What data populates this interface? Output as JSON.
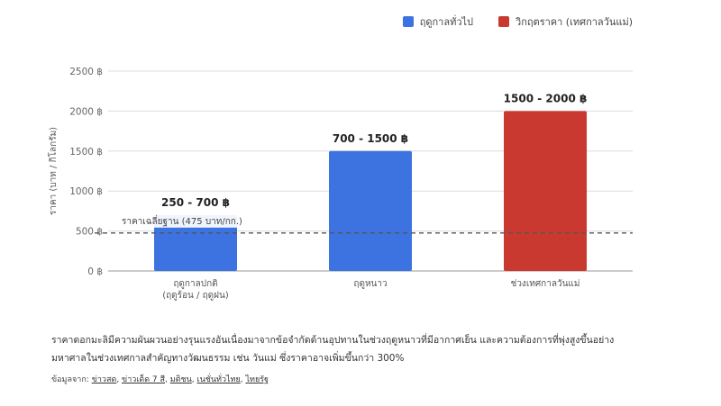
{
  "legend": [
    {
      "label": "ฤดูกาลทั่วไป",
      "color": "#3d73e0"
    },
    {
      "label": "วิกฤตราคา (เทศกาลวันแม่)",
      "color": "#c9392f"
    }
  ],
  "chart_data": {
    "type": "bar",
    "categories": [
      "ฤดูกาลปกติ\n(ฤดูร้อน / ฤดูฝน)",
      "ฤดูหนาว",
      "ช่วงเทศกาลวันแม่"
    ],
    "ranges": [
      [
        250,
        700
      ],
      [
        700,
        1500
      ],
      [
        1500,
        2000
      ]
    ],
    "values": [
      700,
      1500,
      2000
    ],
    "series_by_bar": [
      "ฤดูกาลทั่วไป",
      "ฤดูกาลทั่วไป",
      "วิกฤตราคา (เทศกาลวันแม่)"
    ],
    "bar_colors": [
      "#3d73e0",
      "#3d73e0",
      "#c9392f"
    ],
    "data_labels": [
      "250 - 700 ฿",
      "700 - 1500 ฿",
      "1500 - 2000 ฿"
    ],
    "yticks": [
      "0 ฿",
      "500 ฿",
      "1000 ฿",
      "1500 ฿",
      "2000 ฿",
      "2500 ฿"
    ],
    "ylim": [
      0,
      2500
    ],
    "ylabel": "ราคา (บาท / กิโลกรัม)",
    "reference_line": {
      "value": 475,
      "label": "ราคาเฉลี่ยฐาน (475 บาท/กก.)"
    },
    "grid": true,
    "legend_position": "top-right"
  },
  "note": "ราคาดอกมะลิมีความผันผวนอย่างรุนแรงอันเนื่องมาจากข้อจำกัดด้านอุปทานในช่วงฤดูหนาวที่มีอากาศเย็น และความต้องการที่พุ่งสูงขึ้นอย่างมหาศาลในช่วงเทศกาลสำคัญทางวัฒนธรรม เช่น วันแม่ ซึ่งราคาอาจเพิ่มขึ้นกว่า 300%",
  "sources": {
    "prefix": "ข้อมูลจาก:",
    "links": [
      "ข่าวสด",
      "ข่าวเด็ด 7 สี",
      "มติชน",
      "เนชั่นทั่วไทย",
      "ไทยรัฐ"
    ]
  }
}
